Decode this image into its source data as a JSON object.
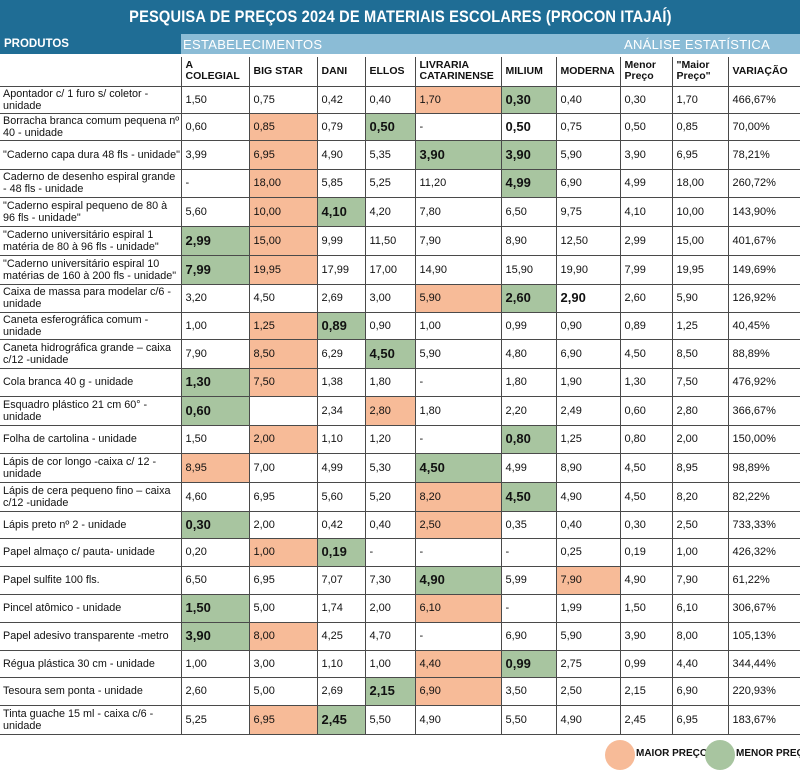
{
  "title": "PESQUISA DE PREÇOS 2024 DE MATERIAIS ESCOLARES (PROCON ITAJAÍ)",
  "section_labels": {
    "produtos": "PRODUTOS",
    "estabelecimentos": "ESTABELECIMENTOS",
    "analise": "ANÁLISE ESTATÍSTICA"
  },
  "colors": {
    "header_dark": "#1f6d95",
    "header_light": "#8bbcd6",
    "maior_preco": "#f7bb98",
    "menor_preco": "#a8c5a0"
  },
  "columns": [
    "A COLEGIAL",
    "BIG STAR",
    "DANI",
    "ELLOS",
    "LIVRARIA CATARINENSE",
    "MILIUM",
    "MODERNA",
    "Menor Preço",
    "\"Maior Preço\"",
    "VARIAÇÃO"
  ],
  "rows": [
    {
      "product": "Apontador c/ 1 furo s/ coletor - unidade",
      "values": [
        "1,50",
        "0,75",
        "0,42",
        "0,40",
        "1,70",
        "0,30",
        "0,40",
        "0,30",
        "1,70",
        "466,67%"
      ],
      "styles": [
        "",
        "",
        "",
        "",
        "worst",
        "best",
        "",
        "",
        "",
        ""
      ]
    },
    {
      "product": "Borracha branca comum pequena nº 40 - unidade",
      "values": [
        "0,60",
        "0,85",
        "0,79",
        "0,50",
        "-",
        "0,50",
        "0,75",
        "0,50",
        "0,85",
        "70,00%"
      ],
      "styles": [
        "",
        "worst",
        "",
        "best",
        "",
        "bold",
        "",
        "",
        "",
        ""
      ]
    },
    {
      "product": "\"Caderno capa dura 48 fls - unidade\"",
      "values": [
        "3,99",
        "6,95",
        "4,90",
        "5,35",
        "3,90",
        "3,90",
        "5,90",
        "3,90",
        "6,95",
        "78,21%"
      ],
      "styles": [
        "",
        "worst",
        "",
        "",
        "best",
        "best",
        "",
        "",
        "",
        ""
      ]
    },
    {
      "product": "Caderno de desenho espiral grande - 48 fls - unidade",
      "values": [
        "-",
        "18,00",
        "5,85",
        "5,25",
        "11,20",
        "4,99",
        "6,90",
        "4,99",
        "18,00",
        "260,72%"
      ],
      "styles": [
        "",
        "worst",
        "",
        "",
        "",
        "best",
        "",
        "",
        "",
        ""
      ]
    },
    {
      "product": "\"Caderno espiral pequeno de 80 à 96 fls - unidade\"",
      "values": [
        "5,60",
        "10,00",
        "4,10",
        "4,20",
        "7,80",
        "6,50",
        "9,75",
        "4,10",
        "10,00",
        "143,90%"
      ],
      "styles": [
        "",
        "worst",
        "best",
        "",
        "",
        "",
        "",
        "",
        "",
        ""
      ]
    },
    {
      "product": "\"Caderno universitário espiral 1 matéria de 80 à 96 fls - unidade\"",
      "values": [
        "2,99",
        "15,00",
        "9,99",
        "11,50",
        "7,90",
        "8,90",
        "12,50",
        "2,99",
        "15,00",
        "401,67%"
      ],
      "styles": [
        "best",
        "worst",
        "",
        "",
        "",
        "",
        "",
        "",
        "",
        ""
      ]
    },
    {
      "product": "\"Caderno universitário espiral 10 matérias de 160 à 200 fls - unidade\"",
      "values": [
        "7,99",
        "19,95",
        "17,99",
        "17,00",
        "14,90",
        "15,90",
        "19,90",
        "7,99",
        "19,95",
        "149,69%"
      ],
      "styles": [
        "best",
        "worst",
        "",
        "",
        "",
        "",
        "",
        "",
        "",
        ""
      ]
    },
    {
      "product": "Caixa de massa para modelar c/6 - unidade",
      "values": [
        "3,20",
        "4,50",
        "2,69",
        "3,00",
        "5,90",
        "2,60",
        "2,90",
        "2,60",
        "5,90",
        "126,92%"
      ],
      "styles": [
        "",
        "",
        "",
        "",
        "worst",
        "best",
        "bold",
        "",
        "",
        ""
      ]
    },
    {
      "product": "Caneta esferográfica comum -unidade",
      "values": [
        "1,00",
        "1,25",
        "0,89",
        "0,90",
        "1,00",
        "0,99",
        "0,90",
        "0,89",
        "1,25",
        "40,45%"
      ],
      "styles": [
        "",
        "worst",
        "best",
        "",
        "",
        "",
        "",
        "",
        "",
        ""
      ]
    },
    {
      "product": "Caneta hidrográfica grande – caixa c/12 -unidade",
      "values": [
        "7,90",
        "8,50",
        "6,29",
        "4,50",
        "5,90",
        "4,80",
        "6,90",
        "4,50",
        "8,50",
        "88,89%"
      ],
      "styles": [
        "",
        "worst",
        "",
        "best",
        "",
        "",
        "",
        "",
        "",
        ""
      ]
    },
    {
      "product": "Cola branca 40 g - unidade",
      "values": [
        "1,30",
        "7,50",
        "1,38",
        "1,80",
        "-",
        "1,80",
        "1,90",
        "1,30",
        "7,50",
        "476,92%"
      ],
      "styles": [
        "best",
        "worst",
        "",
        "",
        "",
        "",
        "",
        "",
        "",
        ""
      ]
    },
    {
      "product": "Esquadro plástico 21 cm 60° - unidade",
      "values": [
        "0,60",
        "",
        "2,34",
        "2,80",
        "1,80",
        "2,20",
        "2,49",
        "0,60",
        "2,80",
        "366,67%"
      ],
      "styles": [
        "best",
        "",
        "",
        "worst",
        "",
        "",
        "",
        "",
        "",
        ""
      ]
    },
    {
      "product": "Folha de cartolina - unidade",
      "values": [
        "1,50",
        "2,00",
        "1,10",
        "1,20",
        "-",
        "0,80",
        "1,25",
        "0,80",
        "2,00",
        "150,00%"
      ],
      "styles": [
        "",
        "worst",
        "",
        "",
        "",
        "best",
        "",
        "",
        "",
        ""
      ]
    },
    {
      "product": "Lápis de cor longo -caixa c/ 12 -unidade",
      "values": [
        "8,95",
        "7,00",
        "4,99",
        "5,30",
        "4,50",
        "4,99",
        "8,90",
        "4,50",
        "8,95",
        "98,89%"
      ],
      "styles": [
        "worst",
        "",
        "",
        "",
        "best",
        "",
        "",
        "",
        "",
        ""
      ]
    },
    {
      "product": "Lápis de cera pequeno fino – caixa c/12 -unidade",
      "values": [
        "4,60",
        "6,95",
        "5,60",
        "5,20",
        "8,20",
        "4,50",
        "4,90",
        "4,50",
        "8,20",
        "82,22%"
      ],
      "styles": [
        "",
        "",
        "",
        "",
        "worst",
        "best",
        "",
        "",
        "",
        ""
      ]
    },
    {
      "product": "Lápis preto nº 2 - unidade",
      "values": [
        "0,30",
        "2,00",
        "0,42",
        "0,40",
        "2,50",
        "0,35",
        "0,40",
        "0,30",
        "2,50",
        "733,33%"
      ],
      "styles": [
        "best",
        "",
        "",
        "",
        "worst",
        "",
        "",
        "",
        "",
        ""
      ]
    },
    {
      "product": "Papel almaço c/ pauta- unidade",
      "values": [
        "0,20",
        "1,00",
        "0,19",
        "-",
        "-",
        "-",
        "0,25",
        "0,19",
        "1,00",
        "426,32%"
      ],
      "styles": [
        "",
        "worst",
        "best",
        "",
        "",
        "",
        "",
        "",
        "",
        ""
      ]
    },
    {
      "product": "Papel sulfite 100 fls.",
      "values": [
        "6,50",
        "6,95",
        "7,07",
        "7,30",
        "4,90",
        "5,99",
        "7,90",
        "4,90",
        "7,90",
        "61,22%"
      ],
      "styles": [
        "",
        "",
        "",
        "",
        "best",
        "",
        "worst",
        "",
        "",
        ""
      ]
    },
    {
      "product": "Pincel atômico - unidade",
      "values": [
        "1,50",
        "5,00",
        "1,74",
        "2,00",
        "6,10",
        "-",
        "1,99",
        "1,50",
        "6,10",
        "306,67%"
      ],
      "styles": [
        "best",
        "",
        "",
        "",
        "worst",
        "",
        "",
        "",
        "",
        ""
      ]
    },
    {
      "product": "Papel adesivo transparente -metro",
      "values": [
        "3,90",
        "8,00",
        "4,25",
        "4,70",
        "-",
        "6,90",
        "5,90",
        "3,90",
        "8,00",
        "105,13%"
      ],
      "styles": [
        "best",
        "worst",
        "",
        "",
        "",
        "",
        "",
        "",
        "",
        ""
      ]
    },
    {
      "product": "Régua plástica 30 cm - unidade",
      "values": [
        "1,00",
        "3,00",
        "1,10",
        "1,00",
        "4,40",
        "0,99",
        "2,75",
        "0,99",
        "4,40",
        "344,44%"
      ],
      "styles": [
        "",
        "",
        "",
        "",
        "worst",
        "best",
        "",
        "",
        "",
        ""
      ]
    },
    {
      "product": "Tesoura sem ponta - unidade",
      "values": [
        "2,60",
        "5,00",
        "2,69",
        "2,15",
        "6,90",
        "3,50",
        "2,50",
        "2,15",
        "6,90",
        "220,93%"
      ],
      "styles": [
        "",
        "",
        "",
        "best",
        "worst",
        "",
        "",
        "",
        "",
        ""
      ]
    },
    {
      "product": "Tinta guache 15 ml - caixa c/6 -unidade",
      "values": [
        "5,25",
        "6,95",
        "2,45",
        "5,50",
        "4,90",
        "5,50",
        "4,90",
        "2,45",
        "6,95",
        "183,67%"
      ],
      "styles": [
        "",
        "worst",
        "best",
        "",
        "",
        "",
        "",
        "",
        "",
        ""
      ]
    }
  ],
  "legend": {
    "maior": "MAIOR PREÇO",
    "menor": "MENOR PREÇO"
  }
}
